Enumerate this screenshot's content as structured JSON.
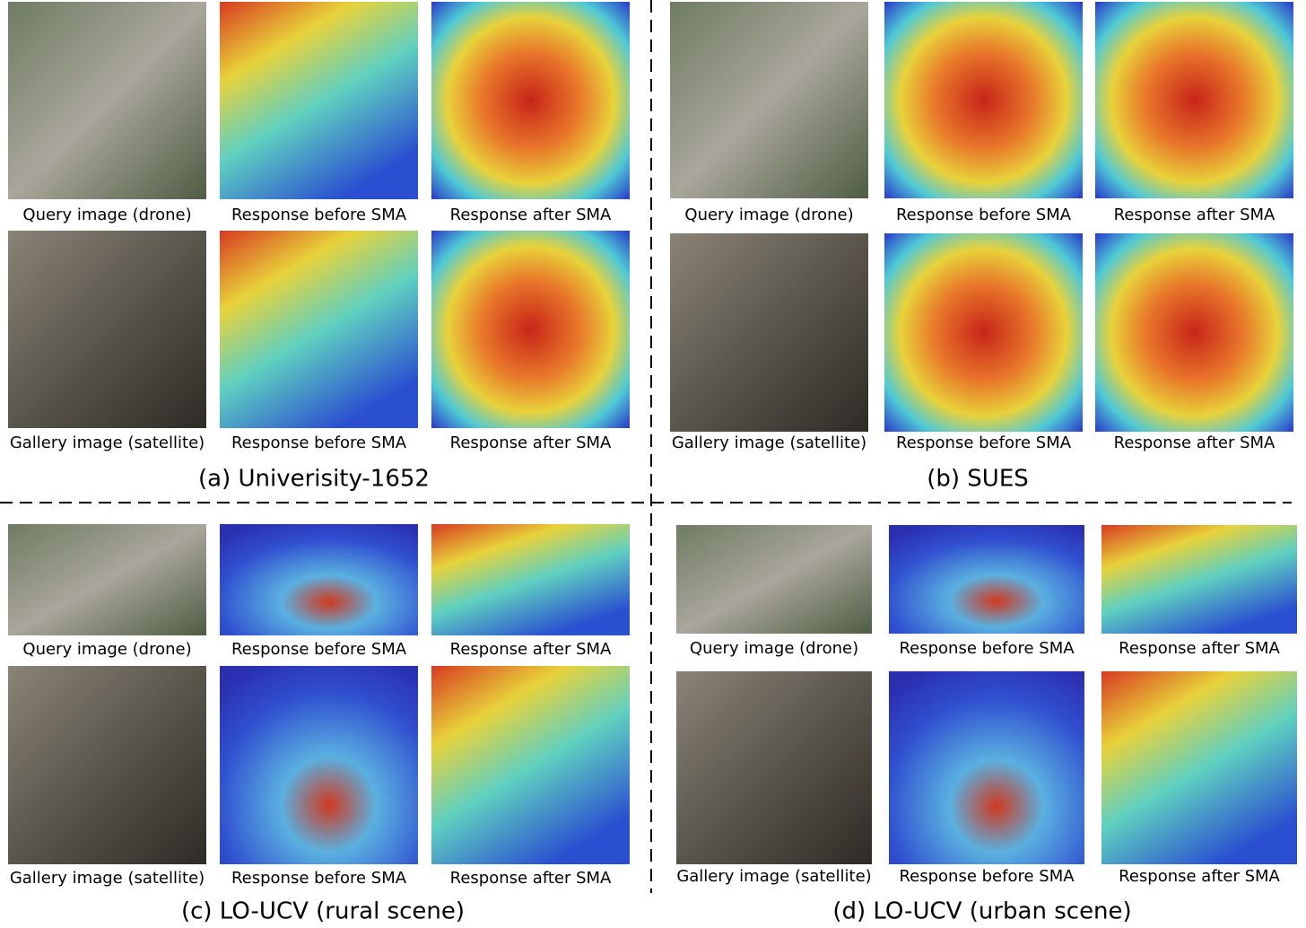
{
  "panels": [
    {
      "caption": "(a) Univerisity-1652",
      "rows": [
        {
          "captions": [
            "Query image (drone)",
            "Response before SMA",
            "Response after SMA"
          ]
        },
        {
          "captions": [
            "Gallery image (satellite)",
            "Response before SMA",
            "Response after SMA"
          ]
        }
      ]
    },
    {
      "caption": "(b) SUES",
      "rows": [
        {
          "captions": [
            "Query image (drone)",
            "Response before SMA",
            "Response after SMA"
          ]
        },
        {
          "captions": [
            "Gallery image (satellite)",
            "Response before SMA",
            "Response after SMA"
          ]
        }
      ]
    },
    {
      "caption": "(c) LO-UCV (rural scene)",
      "rows": [
        {
          "captions": [
            "Query image (drone)",
            "Response before SMA",
            "Response after SMA"
          ]
        },
        {
          "captions": [
            "Gallery image (satellite)",
            "Response before SMA",
            "Response after SMA"
          ]
        }
      ]
    },
    {
      "caption": "(d) LO-UCV (urban scene)",
      "rows": [
        {
          "captions": [
            "Query image (drone)",
            "Response before SMA",
            "Response after SMA"
          ]
        },
        {
          "captions": [
            "Gallery image (satellite)",
            "Response before SMA",
            "Response after SMA"
          ]
        }
      ]
    }
  ]
}
